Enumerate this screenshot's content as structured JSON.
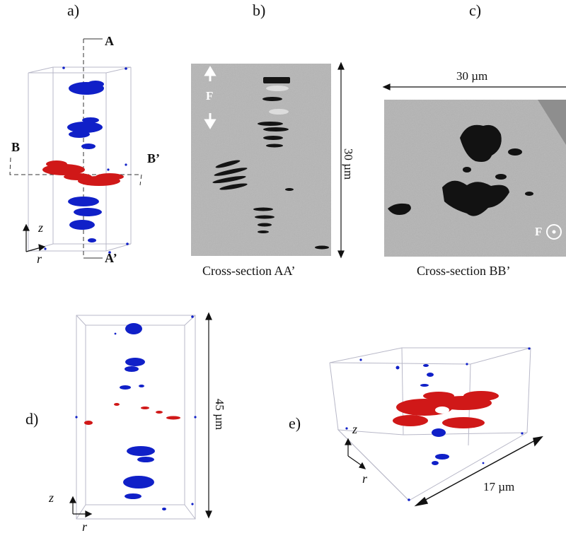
{
  "panels": {
    "a": "a)",
    "b": "b)",
    "c": "c)",
    "d": "d)",
    "e": "e)"
  },
  "panel_a": {
    "sec_A": "A",
    "sec_A_prime": "A’",
    "sec_B": "B",
    "sec_B_prime": "B’",
    "axis_z": "z",
    "axis_r": "r"
  },
  "panel_b": {
    "force_label": "F",
    "scale_label": "30 µm",
    "caption": "Cross-section AA’"
  },
  "panel_c": {
    "scale_label": "30 µm",
    "force_label": "F",
    "caption": "Cross-section BB’"
  },
  "panel_d": {
    "scale_label": "45 µm",
    "axis_z": "z",
    "axis_r": "r"
  },
  "panel_e": {
    "scale_label": "17 µm",
    "axis_z": "z",
    "axis_r": "r"
  },
  "colors": {
    "cluster_axial": "#1020c8",
    "cluster_radial": "#d01818",
    "micrograph_bg": "#b6b6b6",
    "box_lines": "#b8b8c8"
  }
}
